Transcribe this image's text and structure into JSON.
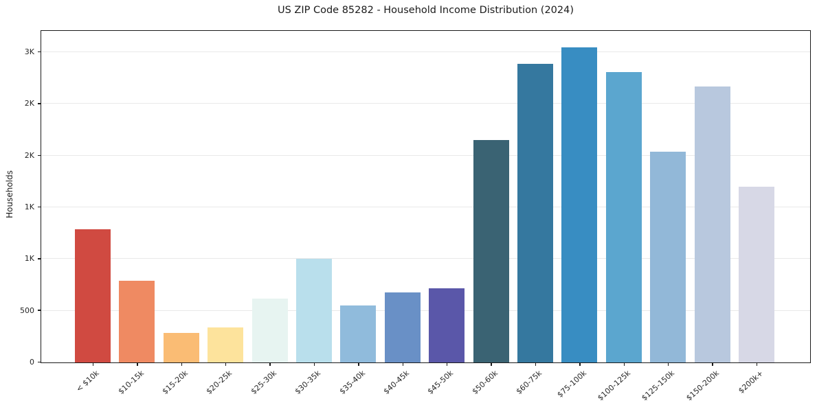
{
  "window": {
    "title": "US ZIP Code 85282 - Household Income Distribution (2024)"
  },
  "chart_data": {
    "type": "bar",
    "title": "US ZIP Code 85282 - Household Income Distribution (2024)",
    "xlabel": "",
    "ylabel": "Households",
    "ylim": [
      0,
      3200
    ],
    "grid": "horizontal-only",
    "legend": "none",
    "categories": [
      "< $10k",
      "$10-15k",
      "$15-20k",
      "$20-25k",
      "$25-30k",
      "$30-35k",
      "$35-40k",
      "$40-45k",
      "$45-50k",
      "$50-60k",
      "$60-75k",
      "$75-100k",
      "$100-125k",
      "$125-150k",
      "$150-200k",
      "$200k+"
    ],
    "values": [
      1290,
      790,
      285,
      340,
      620,
      1000,
      550,
      680,
      720,
      2150,
      2890,
      3050,
      2810,
      2040,
      2670,
      1700
    ],
    "bar_colors": [
      "#d04a41",
      "#ef8a62",
      "#fabc74",
      "#fde39c",
      "#e7f4f1",
      "#b9dfec",
      "#90bbdc",
      "#6990c6",
      "#5a57a9",
      "#3a6373",
      "#35789f",
      "#388dc2",
      "#5ba6cf",
      "#92b8d8",
      "#b8c8de",
      "#d7d8e6"
    ],
    "yticks": [
      {
        "value": 0,
        "label": "0"
      },
      {
        "value": 500,
        "label": "500"
      },
      {
        "value": 1000,
        "label": "1K"
      },
      {
        "value": 1500,
        "label": "1K"
      },
      {
        "value": 2000,
        "label": "2K"
      },
      {
        "value": 2500,
        "label": "2K"
      },
      {
        "value": 3000,
        "label": "3K"
      }
    ]
  }
}
